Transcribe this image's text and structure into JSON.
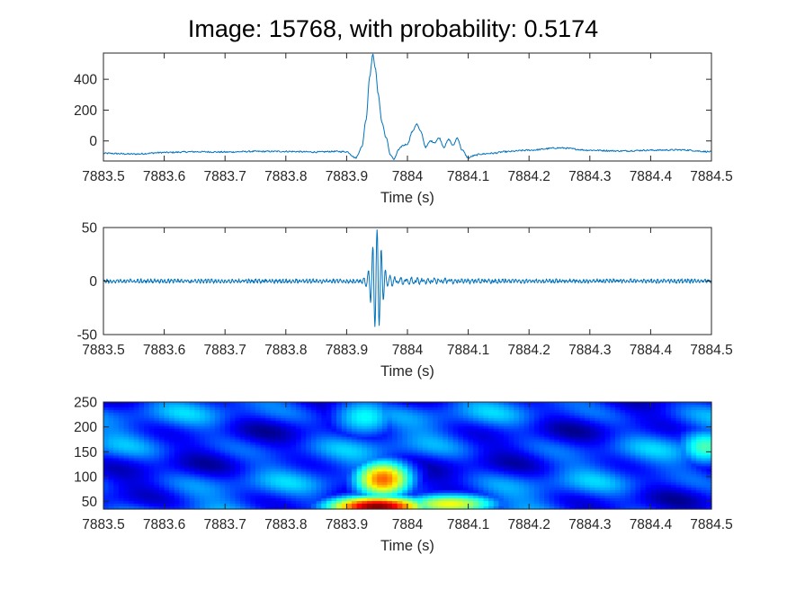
{
  "figure": {
    "title": "Image: 15768, with probability: 0.5174"
  },
  "chart_data": [
    {
      "type": "line",
      "name": "raw-signal",
      "xlabel": "Time (s)",
      "ylabel": "",
      "xlim": [
        7883.5,
        7884.5
      ],
      "ylim": [
        -130,
        570
      ],
      "xticks": [
        7883.5,
        7883.6,
        7883.7,
        7883.8,
        7883.9,
        7884.0,
        7884.1,
        7884.2,
        7884.3,
        7884.4,
        7884.5
      ],
      "xticklabels": [
        "7883.5",
        "7883.6",
        "7883.7",
        "7883.8",
        "7883.9",
        "7884",
        "7884.1",
        "7884.2",
        "7884.3",
        "7884.4",
        "7884.5"
      ],
      "yticks": [
        0,
        200,
        400
      ],
      "yticklabels": [
        "0",
        "200",
        "400"
      ],
      "line_color": "#0072BD",
      "series": [
        {
          "x": [
            7883.5,
            7883.55,
            7883.6,
            7883.65,
            7883.7,
            7883.75,
            7883.8,
            7883.85,
            7883.88,
            7883.9,
            7883.915,
            7883.925,
            7883.932,
            7883.938,
            7883.943,
            7883.947,
            7883.952,
            7883.958,
            7883.965,
            7883.972,
            7883.978,
            7883.985,
            7883.992,
            7884.0,
            7884.008,
            7884.015,
            7884.022,
            7884.03,
            7884.038,
            7884.045,
            7884.052,
            7884.06,
            7884.068,
            7884.075,
            7884.082,
            7884.09,
            7884.1,
            7884.11,
            7884.12,
            7884.14,
            7884.16,
            7884.2,
            7884.25,
            7884.3,
            7884.35,
            7884.4,
            7884.45,
            7884.5
          ],
          "y": [
            -80,
            -85,
            -75,
            -70,
            -72,
            -68,
            -68,
            -72,
            -68,
            -70,
            -110,
            -40,
            140,
            420,
            560,
            480,
            300,
            120,
            20,
            -90,
            -120,
            -60,
            -30,
            -20,
            60,
            110,
            60,
            -40,
            0,
            -10,
            20,
            -40,
            10,
            -30,
            20,
            -60,
            -110,
            -95,
            -85,
            -80,
            -70,
            -60,
            -45,
            -60,
            -65,
            -60,
            -58,
            -70
          ]
        }
      ]
    },
    {
      "type": "line",
      "name": "filtered-signal",
      "xlabel": "Time (s)",
      "ylabel": "",
      "xlim": [
        7883.5,
        7884.5
      ],
      "ylim": [
        -50,
        50
      ],
      "xticks": [
        7883.5,
        7883.6,
        7883.7,
        7883.8,
        7883.9,
        7884.0,
        7884.1,
        7884.2,
        7884.3,
        7884.4,
        7884.5
      ],
      "xticklabels": [
        "7883.5",
        "7883.6",
        "7883.7",
        "7883.8",
        "7883.9",
        "7884",
        "7884.1",
        "7884.2",
        "7884.3",
        "7884.4",
        "7884.5"
      ],
      "yticks": [
        -50,
        0,
        50
      ],
      "yticklabels": [
        "-50",
        "0",
        "50"
      ],
      "line_color": "#0072BD",
      "series": [
        {
          "description": "oscillating band-passed trace; small noise (~±2) with a burst centred at 7883.95 s reaching about +47 and -49",
          "burst_center": 7883.95,
          "burst_peak": 47,
          "burst_trough": -49,
          "noise_amplitude": 2
        }
      ]
    },
    {
      "type": "heatmap",
      "name": "spectrogram",
      "xlabel": "Time (s)",
      "ylabel": "",
      "xlim": [
        7883.5,
        7884.5
      ],
      "ylim": [
        35,
        250
      ],
      "xticks": [
        7883.5,
        7883.6,
        7883.7,
        7883.8,
        7883.9,
        7884.0,
        7884.1,
        7884.2,
        7884.3,
        7884.4,
        7884.5
      ],
      "xticklabels": [
        "7883.5",
        "7883.6",
        "7883.7",
        "7883.8",
        "7883.9",
        "7884",
        "7884.1",
        "7884.2",
        "7884.3",
        "7884.4",
        "7884.5"
      ],
      "yticks": [
        50,
        100,
        150,
        200,
        250
      ],
      "yticklabels": [
        "50",
        "100",
        "150",
        "200",
        "250"
      ],
      "colormap": "jet",
      "hotspots": [
        {
          "t": 7883.95,
          "f": 40,
          "intensity": 1.0
        },
        {
          "t": 7883.96,
          "f": 95,
          "intensity": 0.78
        },
        {
          "t": 7884.07,
          "f": 45,
          "intensity": 0.62
        },
        {
          "t": 7883.93,
          "f": 220,
          "intensity": 0.38
        },
        {
          "t": 7884.49,
          "f": 160,
          "intensity": 0.45
        }
      ]
    }
  ]
}
